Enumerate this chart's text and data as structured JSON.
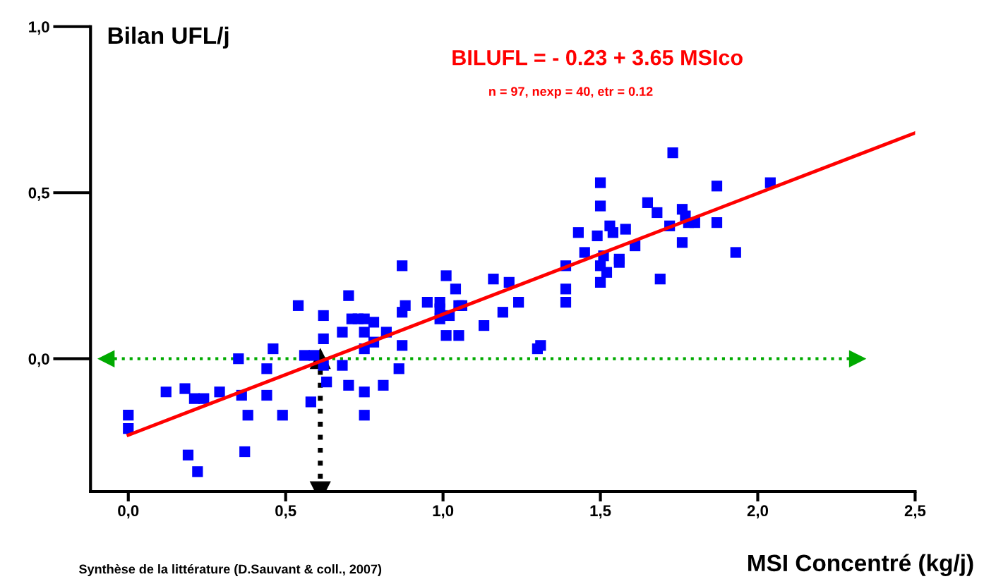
{
  "chart_data": {
    "type": "scatter",
    "ylabel": "Bilan UFL/j",
    "xlabel": "MSI Concentré (kg/j)",
    "annotations": [
      "BILUFL = - 0.23 + 3.65 MSIco",
      "n = 97, nexp = 40, etr = 0.12",
      "Synthèse de la littérature (D.Sauvant & coll., 2007)"
    ],
    "xlim": [
      -0.12,
      2.5
    ],
    "ylim": [
      -0.4,
      1.0
    ],
    "xticks": [
      {
        "value": 0,
        "label": "0,0"
      },
      {
        "value": 0.5,
        "label": "0,5"
      },
      {
        "value": 1.0,
        "label": "1,0"
      },
      {
        "value": 1.5,
        "label": "1,5"
      },
      {
        "value": 2.0,
        "label": "2,0"
      },
      {
        "value": 2.5,
        "label": "2,5"
      }
    ],
    "yticks": [
      {
        "value": 0,
        "label": "0,0"
      },
      {
        "value": 0.5,
        "label": "0,5"
      },
      {
        "value": 1.0,
        "label": "1,0"
      }
    ],
    "grid": false,
    "legend": false,
    "marker": "square",
    "series": [
      {
        "color": "#0000ff",
        "x": [
          0.0,
          0.0,
          0.12,
          0.18,
          0.19,
          0.21,
          0.22,
          0.24,
          0.29,
          0.35,
          0.36,
          0.37,
          0.38,
          0.44,
          0.44,
          0.46,
          0.49,
          0.54,
          0.56,
          0.59,
          0.58,
          0.62,
          0.62,
          0.62,
          0.63,
          0.68,
          0.68,
          0.7,
          0.7,
          0.71,
          0.73,
          0.75,
          0.75,
          0.75,
          0.75,
          0.75,
          0.78,
          0.78,
          0.81,
          0.82,
          0.87,
          0.87,
          0.87,
          0.86,
          0.88,
          0.95,
          0.99,
          0.99,
          0.99,
          1.01,
          1.01,
          1.02,
          1.04,
          1.05,
          1.06,
          1.05,
          1.13,
          1.16,
          1.19,
          1.21,
          1.24,
          1.3,
          1.31,
          1.39,
          1.39,
          1.39,
          1.43,
          1.45,
          1.49,
          1.5,
          1.5,
          1.5,
          1.5,
          1.51,
          1.52,
          1.53,
          1.54,
          1.56,
          1.56,
          1.58,
          1.61,
          1.65,
          1.68,
          1.69,
          1.72,
          1.73,
          1.76,
          1.76,
          1.77,
          1.78,
          1.8,
          1.87,
          1.87,
          1.93,
          2.04
        ],
        "values": [
          -0.17,
          -0.21,
          -0.1,
          -0.09,
          -0.29,
          -0.12,
          -0.34,
          -0.12,
          -0.1,
          0.0,
          -0.11,
          -0.28,
          -0.17,
          -0.03,
          -0.11,
          0.03,
          -0.17,
          0.16,
          0.01,
          0.01,
          -0.13,
          0.13,
          0.06,
          -0.02,
          -0.07,
          0.08,
          -0.02,
          0.19,
          -0.08,
          0.12,
          0.12,
          0.12,
          0.08,
          0.03,
          -0.1,
          -0.17,
          0.11,
          0.05,
          -0.08,
          0.08,
          0.28,
          0.14,
          0.04,
          -0.03,
          0.16,
          0.17,
          0.17,
          0.15,
          0.12,
          0.25,
          0.07,
          0.13,
          0.21,
          0.16,
          0.16,
          0.07,
          0.1,
          0.24,
          0.14,
          0.23,
          0.17,
          0.03,
          0.04,
          0.17,
          0.21,
          0.28,
          0.38,
          0.32,
          0.37,
          0.53,
          0.46,
          0.28,
          0.23,
          0.31,
          0.26,
          0.4,
          0.38,
          0.3,
          0.29,
          0.39,
          0.34,
          0.47,
          0.44,
          0.24,
          0.4,
          0.62,
          0.45,
          0.35,
          0.43,
          0.41,
          0.41,
          0.52,
          0.41,
          0.32,
          0.53
        ]
      },
      {
        "type": "line",
        "color": "#ff0000",
        "marker": "none",
        "x": [
          0.0,
          2.5
        ],
        "values": [
          -0.23,
          0.68
        ]
      }
    ],
    "ref_lines": [
      {
        "axis": "y",
        "value": 0,
        "color": "#00aa00",
        "line_style": "dotted"
      },
      {
        "axis": "x",
        "value": 0.61,
        "color": "#000000",
        "line_style": "dotted"
      }
    ]
  }
}
